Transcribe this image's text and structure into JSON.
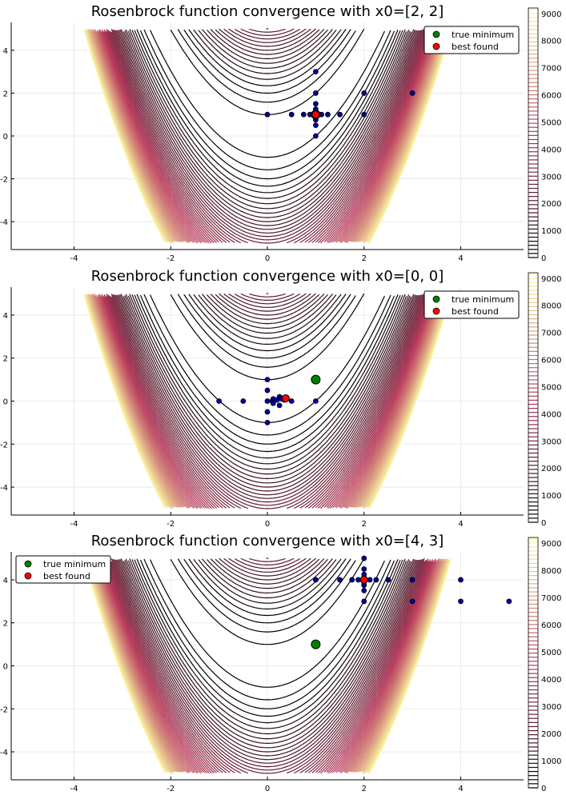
{
  "colors": {
    "true_minimum": "#008000",
    "best_found": "#ff0000",
    "evaluated_points": "#0000a0",
    "contour_low": "#000004",
    "contour_mid": "#b8375a",
    "contour_high": "#fcfea4"
  },
  "chart_data": [
    {
      "type": "contour+scatter",
      "title": "Rosenbrock function convergence with x0=[2, 2]",
      "xlim": [
        -5.3,
        5.3
      ],
      "ylim": [
        -5.3,
        5.3
      ],
      "xticks": [
        -4,
        -2,
        0,
        2,
        4
      ],
      "yticks": [
        -4,
        -2,
        0,
        2,
        4
      ],
      "xtick_labels": [
        "-4",
        "-2",
        "0",
        "2",
        "4"
      ],
      "ytick_labels": [
        "-4",
        "-2",
        "0",
        "2",
        "4"
      ],
      "grid": true,
      "colorbar": {
        "range": [
          0,
          9200
        ],
        "ticks": [
          0,
          1000,
          2000,
          3000,
          4000,
          5000,
          6000,
          7000,
          8000,
          9000
        ],
        "tick_labels": [
          "0",
          "1000",
          "2000",
          "3000",
          "4000",
          "5000",
          "6000",
          "7000",
          "8000",
          "9000"
        ]
      },
      "legend": {
        "placement": "top-right",
        "entries": [
          "true minimum",
          "best found"
        ]
      },
      "true_minimum": [
        1,
        1
      ],
      "best_found": [
        1.0,
        1.0
      ],
      "evaluated_points": [
        [
          0,
          1
        ],
        [
          0.5,
          1
        ],
        [
          0.75,
          1
        ],
        [
          0.88,
          1
        ],
        [
          0.95,
          1
        ],
        [
          1,
          1
        ],
        [
          1.05,
          1
        ],
        [
          1.12,
          1
        ],
        [
          1.25,
          1
        ],
        [
          1.5,
          1
        ],
        [
          2,
          1
        ],
        [
          1,
          0
        ],
        [
          1,
          0.5
        ],
        [
          1,
          0.75
        ],
        [
          1,
          0.88
        ],
        [
          1,
          1.12
        ],
        [
          1,
          1.25
        ],
        [
          1,
          1.5
        ],
        [
          1,
          2
        ],
        [
          1,
          3
        ],
        [
          2,
          2
        ],
        [
          3,
          2
        ]
      ]
    },
    {
      "type": "contour+scatter",
      "title": "Rosenbrock function convergence with x0=[0, 0]",
      "xlim": [
        -5.3,
        5.3
      ],
      "ylim": [
        -5.3,
        5.3
      ],
      "xticks": [
        -4,
        -2,
        0,
        2,
        4
      ],
      "yticks": [
        -4,
        -2,
        0,
        2,
        4
      ],
      "xtick_labels": [
        "-4",
        "-2",
        "0",
        "2",
        "4"
      ],
      "ytick_labels": [
        "-4",
        "-2",
        "0",
        "2",
        "4"
      ],
      "grid": true,
      "colorbar": {
        "range": [
          0,
          9200
        ],
        "ticks": [
          0,
          1000,
          2000,
          3000,
          4000,
          5000,
          6000,
          7000,
          8000,
          9000
        ],
        "tick_labels": [
          "0",
          "1000",
          "2000",
          "3000",
          "4000",
          "5000",
          "6000",
          "7000",
          "8000",
          "9000"
        ]
      },
      "legend": {
        "placement": "top-right",
        "entries": [
          "true minimum",
          "best found"
        ]
      },
      "true_minimum": [
        1,
        1
      ],
      "best_found": [
        0.38,
        0.13
      ],
      "evaluated_points": [
        [
          -1,
          0
        ],
        [
          -0.5,
          0
        ],
        [
          0,
          0
        ],
        [
          0.1,
          0
        ],
        [
          0.12,
          0.1
        ],
        [
          0.2,
          0.05
        ],
        [
          0.25,
          0.2
        ],
        [
          0.3,
          0.1
        ],
        [
          0.5,
          0
        ],
        [
          1,
          0
        ],
        [
          0,
          -0.5
        ],
        [
          0,
          -1
        ],
        [
          0,
          0.5
        ],
        [
          0,
          1
        ],
        [
          0.25,
          -0.2
        ],
        [
          0.12,
          -0.1
        ],
        [
          0.28,
          0.15
        ],
        [
          0.35,
          0.05
        ]
      ]
    },
    {
      "type": "contour+scatter",
      "title": "Rosenbrock function convergence with x0=[4, 3]",
      "xlim": [
        -5.3,
        5.3
      ],
      "ylim": [
        -5.3,
        5.3
      ],
      "xticks": [
        -4,
        -2,
        0,
        2,
        4
      ],
      "yticks": [
        -4,
        -2,
        0,
        2,
        4
      ],
      "xtick_labels": [
        "-4",
        "-2",
        "0",
        "2",
        "4"
      ],
      "ytick_labels": [
        "-4",
        "-2",
        "0",
        "2",
        "4"
      ],
      "grid": true,
      "colorbar": {
        "range": [
          0,
          9200
        ],
        "ticks": [
          0,
          1000,
          2000,
          3000,
          4000,
          5000,
          6000,
          7000,
          8000,
          9000
        ],
        "tick_labels": [
          "0",
          "1000",
          "2000",
          "3000",
          "4000",
          "5000",
          "6000",
          "7000",
          "8000",
          "9000"
        ]
      },
      "legend": {
        "placement": "top-left",
        "entries": [
          "true minimum",
          "best found"
        ]
      },
      "true_minimum": [
        1,
        1
      ],
      "best_found": [
        2.0,
        4.0
      ],
      "evaluated_points": [
        [
          1,
          4
        ],
        [
          1.5,
          4
        ],
        [
          1.75,
          4
        ],
        [
          1.88,
          4
        ],
        [
          2,
          4
        ],
        [
          2.12,
          4
        ],
        [
          2.25,
          4
        ],
        [
          2.5,
          4
        ],
        [
          3,
          4
        ],
        [
          4,
          4
        ],
        [
          2,
          3
        ],
        [
          2,
          3.5
        ],
        [
          2,
          3.75
        ],
        [
          2,
          3.88
        ],
        [
          2,
          4.12
        ],
        [
          2,
          4.25
        ],
        [
          2,
          4.5
        ],
        [
          2,
          5
        ],
        [
          3,
          3
        ],
        [
          4,
          3
        ],
        [
          5,
          3
        ]
      ]
    }
  ]
}
